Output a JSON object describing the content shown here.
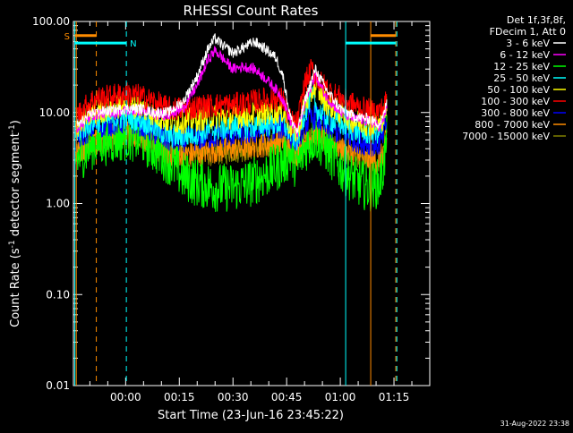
{
  "chart_data": {
    "type": "line",
    "title": "RHESSI Count Rates",
    "xlabel": "Start Time (23-Jun-16 23:45:22)",
    "ylabel_main": "Count Rate (s",
    "ylabel_sup1": "-1",
    "ylabel_mid": " detector segment",
    "ylabel_sup2": "-1",
    "ylabel_end": ")",
    "yscale": "log",
    "ylim": [
      0.01,
      100
    ],
    "x_unit": "minutes after 00:00",
    "xlim": [
      -14.6,
      85
    ],
    "xticks": [
      {
        "v": 0,
        "label": "00:00"
      },
      {
        "v": 15,
        "label": "00:15"
      },
      {
        "v": 30,
        "label": "00:30"
      },
      {
        "v": 45,
        "label": "00:45"
      },
      {
        "v": 60,
        "label": "01:00"
      },
      {
        "v": 75,
        "label": "01:15"
      }
    ],
    "yticks": [
      {
        "v": 100,
        "label": "100.00"
      },
      {
        "v": 10,
        "label": "10.00"
      },
      {
        "v": 1,
        "label": "1.00"
      },
      {
        "v": 0.1,
        "label": "0.10"
      },
      {
        "v": 0.01,
        "label": "0.01"
      }
    ],
    "legend_header": [
      "Det 1f,3f,8f,",
      "FDecim 1, Att 0"
    ],
    "legend_position": "top-right, outside plot",
    "series": [
      {
        "name": "3 - 6 keV",
        "color": "#ffffff",
        "points": [
          [
            -14,
            7
          ],
          [
            -9,
            10
          ],
          [
            -4,
            10.5
          ],
          [
            0,
            11
          ],
          [
            4,
            11
          ],
          [
            8,
            10
          ],
          [
            12,
            10
          ],
          [
            16,
            13
          ],
          [
            20,
            25
          ],
          [
            23,
            50
          ],
          [
            25,
            65
          ],
          [
            27,
            55
          ],
          [
            30,
            45
          ],
          [
            33,
            52
          ],
          [
            36,
            60
          ],
          [
            39,
            50
          ],
          [
            42,
            40
          ],
          [
            44,
            25
          ],
          [
            46,
            9
          ],
          [
            48,
            6
          ],
          [
            50,
            13
          ],
          [
            53,
            30
          ],
          [
            56,
            18
          ],
          [
            60,
            11
          ],
          [
            64,
            9
          ],
          [
            68,
            8.5
          ],
          [
            71,
            7.5
          ],
          [
            72,
            9
          ],
          [
            73,
            13
          ]
        ]
      },
      {
        "name": "6 - 12 keV",
        "color": "#ff00ff",
        "points": [
          [
            -14,
            6.5
          ],
          [
            -9,
            9.5
          ],
          [
            -4,
            10
          ],
          [
            0,
            10.5
          ],
          [
            4,
            10.5
          ],
          [
            8,
            9.5
          ],
          [
            12,
            9.5
          ],
          [
            16,
            11
          ],
          [
            20,
            20
          ],
          [
            23,
            38
          ],
          [
            25,
            48
          ],
          [
            27,
            40
          ],
          [
            30,
            30
          ],
          [
            33,
            32
          ],
          [
            36,
            30
          ],
          [
            39,
            24
          ],
          [
            42,
            18
          ],
          [
            44,
            14
          ],
          [
            46,
            8
          ],
          [
            48,
            6
          ],
          [
            50,
            12
          ],
          [
            53,
            26
          ],
          [
            56,
            15
          ],
          [
            60,
            10
          ],
          [
            64,
            8.5
          ],
          [
            68,
            8
          ],
          [
            71,
            7
          ],
          [
            72,
            8
          ],
          [
            73,
            12
          ]
        ]
      },
      {
        "name": "12 - 25 keV",
        "color": "#00ff00",
        "points": [
          [
            -14,
            3
          ],
          [
            -9,
            4.5
          ],
          [
            -4,
            5
          ],
          [
            0,
            5.5
          ],
          [
            4,
            5.2
          ],
          [
            8,
            4
          ],
          [
            12,
            3
          ],
          [
            16,
            2
          ],
          [
            20,
            1.7
          ],
          [
            25,
            1.5
          ],
          [
            30,
            1.5
          ],
          [
            35,
            1.7
          ],
          [
            40,
            2.2
          ],
          [
            44,
            2.8
          ],
          [
            46,
            3.5
          ],
          [
            48,
            2.5
          ],
          [
            50,
            4
          ],
          [
            53,
            5.5
          ],
          [
            56,
            4
          ],
          [
            60,
            2.5
          ],
          [
            64,
            1.8
          ],
          [
            68,
            1.5
          ],
          [
            71,
            1.7
          ],
          [
            72,
            2.5
          ],
          [
            73,
            5
          ]
        ]
      },
      {
        "name": "25 - 50 keV",
        "color": "#00ffff",
        "points": [
          [
            -14,
            6
          ],
          [
            -9,
            8
          ],
          [
            -4,
            8.5
          ],
          [
            0,
            9
          ],
          [
            4,
            8.5
          ],
          [
            8,
            7
          ],
          [
            12,
            5.5
          ],
          [
            16,
            5.5
          ],
          [
            20,
            6
          ],
          [
            25,
            6.5
          ],
          [
            30,
            7
          ],
          [
            35,
            7
          ],
          [
            40,
            7.5
          ],
          [
            44,
            7.5
          ],
          [
            46,
            6
          ],
          [
            48,
            5
          ],
          [
            50,
            10
          ],
          [
            52,
            15
          ],
          [
            54,
            10
          ],
          [
            58,
            8
          ],
          [
            62,
            7
          ],
          [
            66,
            6
          ],
          [
            70,
            6
          ],
          [
            72,
            7
          ],
          [
            73,
            10
          ]
        ]
      },
      {
        "name": "50 - 100 keV",
        "color": "#ffff00",
        "points": [
          [
            -14,
            7
          ],
          [
            -9,
            10
          ],
          [
            -4,
            11
          ],
          [
            0,
            12
          ],
          [
            4,
            11.5
          ],
          [
            8,
            9.5
          ],
          [
            12,
            8
          ],
          [
            16,
            8
          ],
          [
            20,
            8.5
          ],
          [
            25,
            9
          ],
          [
            30,
            9
          ],
          [
            35,
            9.5
          ],
          [
            40,
            10
          ],
          [
            44,
            10.5
          ],
          [
            46,
            7
          ],
          [
            48,
            6
          ],
          [
            50,
            12
          ],
          [
            53,
            20
          ],
          [
            56,
            13
          ],
          [
            60,
            10
          ],
          [
            64,
            8
          ],
          [
            68,
            7.5
          ],
          [
            71,
            7.5
          ],
          [
            72,
            9
          ],
          [
            73,
            12
          ]
        ]
      },
      {
        "name": "100 - 300 keV",
        "color": "#ff0000",
        "points": [
          [
            -14,
            9
          ],
          [
            -9,
            14
          ],
          [
            -4,
            15
          ],
          [
            0,
            16
          ],
          [
            4,
            15
          ],
          [
            8,
            13
          ],
          [
            12,
            11
          ],
          [
            16,
            11
          ],
          [
            20,
            11.5
          ],
          [
            25,
            12
          ],
          [
            30,
            12
          ],
          [
            35,
            13
          ],
          [
            40,
            14
          ],
          [
            44,
            14
          ],
          [
            46,
            8
          ],
          [
            48,
            7.5
          ],
          [
            50,
            20
          ],
          [
            52,
            30
          ],
          [
            54,
            22
          ],
          [
            58,
            16
          ],
          [
            62,
            13
          ],
          [
            66,
            11
          ],
          [
            70,
            10
          ],
          [
            72,
            11
          ],
          [
            73,
            14
          ]
        ]
      },
      {
        "name": "300 - 800 keV",
        "color": "#0000ff",
        "points": [
          [
            -14,
            5
          ],
          [
            -9,
            7
          ],
          [
            -4,
            7.5
          ],
          [
            0,
            8
          ],
          [
            4,
            7.5
          ],
          [
            8,
            6
          ],
          [
            12,
            5
          ],
          [
            16,
            5
          ],
          [
            20,
            5.2
          ],
          [
            25,
            5.5
          ],
          [
            30,
            5.8
          ],
          [
            35,
            6
          ],
          [
            40,
            6.5
          ],
          [
            44,
            7
          ],
          [
            46,
            5.5
          ],
          [
            48,
            5
          ],
          [
            50,
            7.5
          ],
          [
            53,
            9
          ],
          [
            56,
            7
          ],
          [
            60,
            6
          ],
          [
            64,
            5
          ],
          [
            68,
            4.5
          ],
          [
            71,
            4.5
          ],
          [
            72,
            5.5
          ],
          [
            73,
            8
          ]
        ]
      },
      {
        "name": "800 - 7000 keV",
        "color": "#ff8c00",
        "points": [
          [
            -14,
            3.5
          ],
          [
            -9,
            5
          ],
          [
            -4,
            5.5
          ],
          [
            0,
            6
          ],
          [
            4,
            5.5
          ],
          [
            8,
            4.5
          ],
          [
            12,
            3.5
          ],
          [
            16,
            3.5
          ],
          [
            20,
            3.6
          ],
          [
            25,
            3.8
          ],
          [
            30,
            4
          ],
          [
            35,
            4.2
          ],
          [
            40,
            4.5
          ],
          [
            44,
            5
          ],
          [
            46,
            4
          ],
          [
            48,
            3.5
          ],
          [
            50,
            5
          ],
          [
            53,
            6
          ],
          [
            56,
            5
          ],
          [
            60,
            4
          ],
          [
            64,
            3.5
          ],
          [
            68,
            3
          ],
          [
            71,
            3
          ],
          [
            72,
            3.8
          ],
          [
            73,
            5.5
          ]
        ]
      },
      {
        "name": "7000 - 15000 keV",
        "color": "#808000",
        "points": [
          [
            -14,
            3.2
          ],
          [
            -9,
            4.6
          ],
          [
            -4,
            5.1
          ],
          [
            0,
            5.6
          ],
          [
            4,
            5.2
          ],
          [
            8,
            4.2
          ],
          [
            12,
            3.3
          ],
          [
            16,
            3.3
          ],
          [
            20,
            3.4
          ],
          [
            25,
            3.6
          ],
          [
            30,
            3.8
          ],
          [
            35,
            4
          ],
          [
            40,
            4.3
          ],
          [
            44,
            4.7
          ],
          [
            46,
            3.8
          ],
          [
            48,
            3.3
          ],
          [
            50,
            4.7
          ],
          [
            53,
            5.6
          ],
          [
            56,
            4.6
          ],
          [
            60,
            3.8
          ],
          [
            64,
            3.3
          ],
          [
            68,
            2.9
          ],
          [
            71,
            2.9
          ],
          [
            72,
            3.6
          ],
          [
            73,
            5
          ]
        ]
      }
    ],
    "flags": [
      {
        "label": "S",
        "color": "#ff8c00",
        "y": 70,
        "segments": [
          [
            -14.2,
            -8.2
          ],
          [
            68.5,
            75.5
          ]
        ]
      },
      {
        "label": "N",
        "color": "#00ffff",
        "y": 58,
        "segments": [
          [
            -14.2,
            0.2
          ],
          [
            61.5,
            75.5
          ]
        ]
      }
    ],
    "vlines": [
      {
        "x": -14.2,
        "color": "#00ffff",
        "style": "solid"
      },
      {
        "x": -13.8,
        "color": "#ff8c00",
        "style": "solid"
      },
      {
        "x": -8.2,
        "color": "#ff8c00",
        "style": "dashed"
      },
      {
        "x": 0.2,
        "color": "#00ffff",
        "style": "dashed"
      },
      {
        "x": 61.5,
        "color": "#00ffff",
        "style": "solid"
      },
      {
        "x": 68.5,
        "color": "#ff8c00",
        "style": "solid"
      },
      {
        "x": 75.5,
        "color": "#ff8c00",
        "style": "dashed"
      },
      {
        "x": 75.8,
        "color": "#00ffff",
        "style": "dashed"
      }
    ]
  },
  "timestamp": "31-Aug-2022 23:38"
}
